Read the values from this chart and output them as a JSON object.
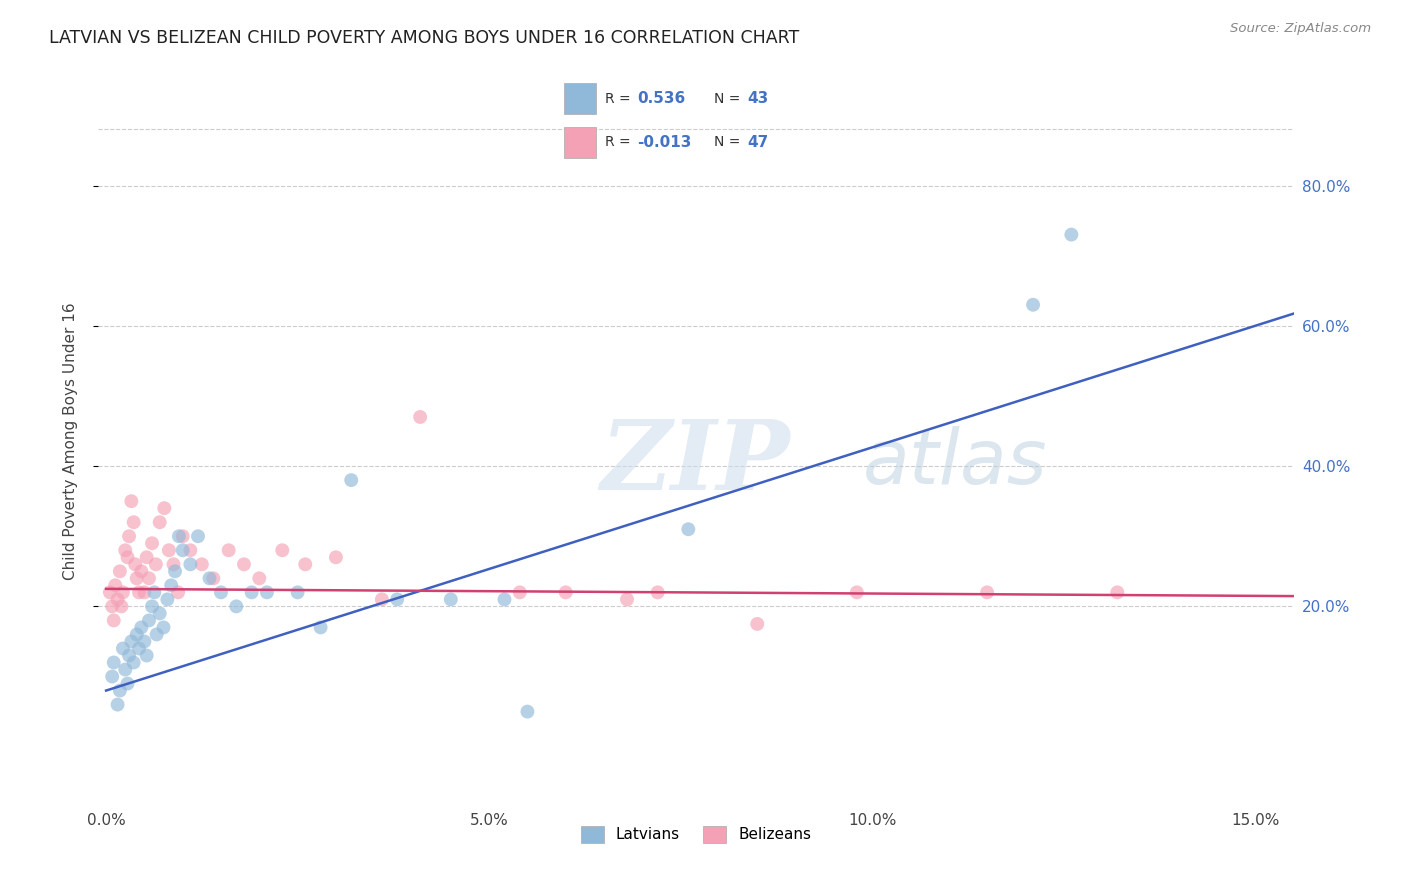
{
  "title": "LATVIAN VS BELIZEAN CHILD POVERTY AMONG BOYS UNDER 16 CORRELATION CHART",
  "source": "Source: ZipAtlas.com",
  "ylabel": "Child Poverty Among Boys Under 16",
  "x_tick_labels": [
    "0.0%",
    "5.0%",
    "10.0%",
    "15.0%"
  ],
  "x_tick_values": [
    0.0,
    5.0,
    10.0,
    15.0
  ],
  "y_tick_labels": [
    "20.0%",
    "40.0%",
    "60.0%",
    "80.0%"
  ],
  "y_tick_values": [
    20.0,
    40.0,
    60.0,
    80.0
  ],
  "xlim": [
    -0.1,
    15.5
  ],
  "ylim": [
    -8.0,
    95.0
  ],
  "r_latvian": "0.536",
  "n_latvian": "43",
  "r_belizean": "-0.013",
  "n_belizean": "47",
  "latvian_color": "#90b8d8",
  "belizean_color": "#f4a0b5",
  "latvian_line_color": "#4060c0",
  "belizean_line_color": "#d04070",
  "watermark_zip": "ZIP",
  "watermark_atlas": "atlas",
  "bg_color": "#ffffff",
  "grid_color": "#cccccc",
  "scatter_alpha": 0.65,
  "scatter_size": 100,
  "lat_line_x0": 0.0,
  "lat_line_y0": 8.0,
  "lat_line_x1": 15.0,
  "lat_line_y1": 60.0,
  "bel_line_x0": 0.0,
  "bel_line_y0": 22.5,
  "bel_line_x1": 15.0,
  "bel_line_y1": 21.5,
  "latvian_x": [
    0.08,
    0.1,
    0.15,
    0.18,
    0.22,
    0.25,
    0.28,
    0.3,
    0.33,
    0.36,
    0.4,
    0.43,
    0.46,
    0.5,
    0.53,
    0.56,
    0.6,
    0.63,
    0.66,
    0.7,
    0.75,
    0.8,
    0.85,
    0.9,
    0.95,
    1.0,
    1.1,
    1.2,
    1.35,
    1.5,
    1.7,
    1.9,
    2.1,
    2.5,
    2.8,
    3.2,
    3.8,
    4.5,
    5.2,
    5.5,
    7.6,
    12.1,
    12.6
  ],
  "latvian_y": [
    10.0,
    12.0,
    6.0,
    8.0,
    14.0,
    11.0,
    9.0,
    13.0,
    15.0,
    12.0,
    16.0,
    14.0,
    17.0,
    15.0,
    13.0,
    18.0,
    20.0,
    22.0,
    16.0,
    19.0,
    17.0,
    21.0,
    23.0,
    25.0,
    30.0,
    28.0,
    26.0,
    30.0,
    24.0,
    22.0,
    20.0,
    22.0,
    22.0,
    22.0,
    17.0,
    38.0,
    21.0,
    21.0,
    21.0,
    5.0,
    31.0,
    63.0,
    73.0
  ],
  "belizean_x": [
    0.05,
    0.08,
    0.1,
    0.12,
    0.15,
    0.18,
    0.2,
    0.22,
    0.25,
    0.28,
    0.3,
    0.33,
    0.36,
    0.38,
    0.4,
    0.43,
    0.46,
    0.5,
    0.53,
    0.56,
    0.6,
    0.65,
    0.7,
    0.76,
    0.82,
    0.88,
    0.94,
    1.0,
    1.1,
    1.25,
    1.4,
    1.6,
    1.8,
    2.0,
    2.3,
    2.6,
    3.0,
    3.6,
    4.1,
    5.4,
    6.0,
    6.8,
    7.2,
    8.5,
    9.8,
    11.5,
    13.2
  ],
  "belizean_y": [
    22.0,
    20.0,
    18.0,
    23.0,
    21.0,
    25.0,
    20.0,
    22.0,
    28.0,
    27.0,
    30.0,
    35.0,
    32.0,
    26.0,
    24.0,
    22.0,
    25.0,
    22.0,
    27.0,
    24.0,
    29.0,
    26.0,
    32.0,
    34.0,
    28.0,
    26.0,
    22.0,
    30.0,
    28.0,
    26.0,
    24.0,
    28.0,
    26.0,
    24.0,
    28.0,
    26.0,
    27.0,
    21.0,
    47.0,
    22.0,
    22.0,
    21.0,
    22.0,
    17.5,
    22.0,
    22.0,
    22.0
  ]
}
